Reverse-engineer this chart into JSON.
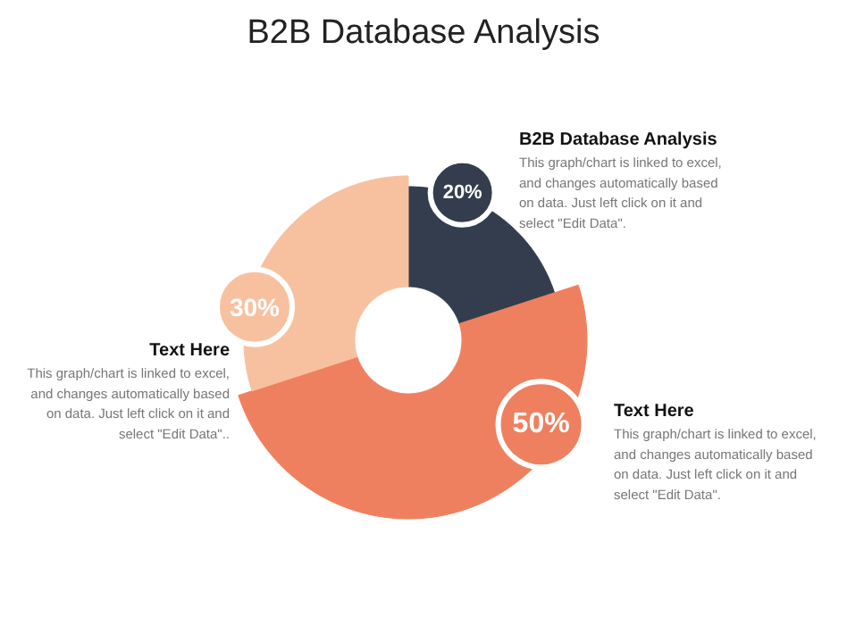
{
  "chart_data": {
    "type": "donut",
    "title": "B2B Database Analysis",
    "categories": [
      "B2B Database Analysis",
      "Text Here",
      "Text Here"
    ],
    "values": [
      20,
      50,
      30
    ],
    "colors": [
      "#343d4d",
      "#ef805f",
      "#f7c1a0"
    ],
    "value_labels": [
      "20%",
      "50%",
      "30%"
    ],
    "annotations": [
      "This graph/chart is linked to excel,\nand changes automatically based\non data. Just left click on it and\nselect \"Edit Data\".",
      "This graph/chart is linked to excel,\nand changes automatically based\non data. Just left click on it and\nselect \"Edit Data\".",
      "This graph/chart is linked to excel,\nand changes automatically based\non data. Just left click on it and\nselect \"Edit Data\".."
    ]
  }
}
